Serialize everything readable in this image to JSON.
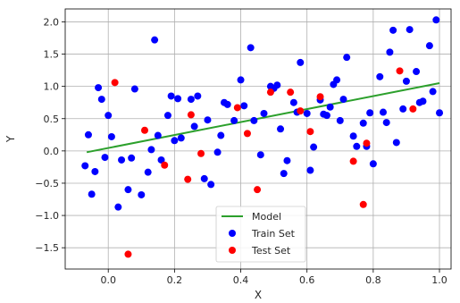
{
  "chart_data": {
    "type": "scatter",
    "xlabel": "X",
    "ylabel": "Y",
    "xlim": [
      -0.13,
      1.035
    ],
    "ylim": [
      -1.83,
      2.2
    ],
    "xticks": [
      0.0,
      0.2,
      0.4,
      0.6,
      0.8,
      1.0
    ],
    "xtick_labels": [
      "0.0",
      "0.2",
      "0.4",
      "0.6",
      "0.8",
      "1.0"
    ],
    "yticks": [
      -1.5,
      -1.0,
      -0.5,
      0.0,
      0.5,
      1.0,
      1.5,
      2.0
    ],
    "ytick_labels": [
      "−1.5",
      "−1.0",
      "−0.5",
      "0.0",
      "0.5",
      "1.0",
      "1.5",
      "2.0"
    ],
    "grid": true,
    "legend_position": "lower-center",
    "colors": {
      "model": "#2ca02c",
      "train": "#0000ff",
      "test": "#ff0000"
    },
    "series": [
      {
        "name": "Model",
        "type": "line",
        "x": [
          -0.065,
          1.0
        ],
        "y": [
          -0.02,
          1.05
        ]
      },
      {
        "name": "Train Set",
        "type": "scatter",
        "points": [
          [
            -0.07,
            -0.23
          ],
          [
            -0.06,
            0.25
          ],
          [
            -0.05,
            -0.67
          ],
          [
            -0.04,
            -0.32
          ],
          [
            -0.03,
            0.98
          ],
          [
            -0.02,
            0.8
          ],
          [
            -0.01,
            -0.1
          ],
          [
            0.0,
            0.55
          ],
          [
            0.01,
            0.22
          ],
          [
            0.03,
            -0.87
          ],
          [
            0.04,
            -0.14
          ],
          [
            0.06,
            -0.6
          ],
          [
            0.07,
            -0.11
          ],
          [
            0.08,
            0.96
          ],
          [
            0.1,
            -0.68
          ],
          [
            0.12,
            -0.33
          ],
          [
            0.13,
            0.02
          ],
          [
            0.14,
            1.72
          ],
          [
            0.15,
            0.24
          ],
          [
            0.16,
            -0.14
          ],
          [
            0.18,
            0.55
          ],
          [
            0.19,
            0.85
          ],
          [
            0.2,
            0.16
          ],
          [
            0.21,
            0.81
          ],
          [
            0.22,
            0.2
          ],
          [
            0.25,
            0.8
          ],
          [
            0.26,
            0.38
          ],
          [
            0.27,
            0.85
          ],
          [
            0.29,
            -0.43
          ],
          [
            0.3,
            0.48
          ],
          [
            0.31,
            -0.52
          ],
          [
            0.33,
            -0.02
          ],
          [
            0.34,
            0.24
          ],
          [
            0.35,
            0.75
          ],
          [
            0.36,
            0.72
          ],
          [
            0.38,
            0.47
          ],
          [
            0.4,
            1.1
          ],
          [
            0.41,
            0.7
          ],
          [
            0.43,
            1.6
          ],
          [
            0.44,
            0.47
          ],
          [
            0.46,
            -0.06
          ],
          [
            0.47,
            0.58
          ],
          [
            0.49,
            1.0
          ],
          [
            0.5,
            0.97
          ],
          [
            0.51,
            1.02
          ],
          [
            0.52,
            0.34
          ],
          [
            0.53,
            -0.35
          ],
          [
            0.54,
            -0.15
          ],
          [
            0.56,
            0.75
          ],
          [
            0.57,
            0.6
          ],
          [
            0.58,
            1.37
          ],
          [
            0.6,
            0.58
          ],
          [
            0.61,
            -0.3
          ],
          [
            0.62,
            0.06
          ],
          [
            0.64,
            0.79
          ],
          [
            0.65,
            0.57
          ],
          [
            0.66,
            0.55
          ],
          [
            0.67,
            0.68
          ],
          [
            0.68,
            1.03
          ],
          [
            0.69,
            1.1
          ],
          [
            0.7,
            0.47
          ],
          [
            0.71,
            0.8
          ],
          [
            0.72,
            1.45
          ],
          [
            0.74,
            0.23
          ],
          [
            0.75,
            0.07
          ],
          [
            0.77,
            0.43
          ],
          [
            0.78,
            0.07
          ],
          [
            0.79,
            0.59
          ],
          [
            0.8,
            -0.2
          ],
          [
            0.82,
            1.15
          ],
          [
            0.83,
            0.6
          ],
          [
            0.84,
            0.44
          ],
          [
            0.85,
            1.53
          ],
          [
            0.86,
            1.87
          ],
          [
            0.87,
            0.13
          ],
          [
            0.89,
            0.65
          ],
          [
            0.9,
            1.08
          ],
          [
            0.91,
            1.88
          ],
          [
            0.93,
            1.23
          ],
          [
            0.94,
            0.75
          ],
          [
            0.95,
            0.77
          ],
          [
            0.97,
            1.63
          ],
          [
            0.98,
            0.92
          ],
          [
            0.99,
            2.03
          ],
          [
            1.0,
            0.59
          ]
        ]
      },
      {
        "name": "Test Set",
        "type": "scatter",
        "points": [
          [
            0.02,
            1.06
          ],
          [
            0.06,
            -1.6
          ],
          [
            0.11,
            0.32
          ],
          [
            0.17,
            -0.22
          ],
          [
            0.24,
            -0.44
          ],
          [
            0.25,
            0.56
          ],
          [
            0.28,
            -0.04
          ],
          [
            0.39,
            0.67
          ],
          [
            0.42,
            0.27
          ],
          [
            0.45,
            -0.6
          ],
          [
            0.49,
            0.91
          ],
          [
            0.55,
            0.91
          ],
          [
            0.58,
            0.62
          ],
          [
            0.61,
            0.3
          ],
          [
            0.64,
            0.84
          ],
          [
            0.74,
            -0.16
          ],
          [
            0.77,
            -0.83
          ],
          [
            0.78,
            0.12
          ],
          [
            0.88,
            1.24
          ],
          [
            0.92,
            0.65
          ]
        ]
      }
    ]
  }
}
